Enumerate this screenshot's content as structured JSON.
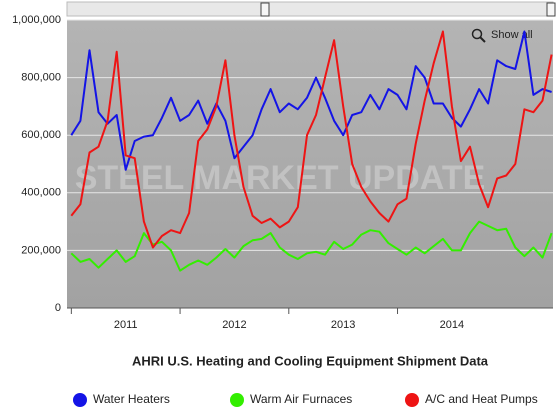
{
  "chart_data": {
    "type": "line",
    "title": "AHRI U.S. Heating and Cooling Equipment Shipment Data",
    "watermark": "STEEL MARKET UPDATE",
    "button_label": "Show all",
    "x": [
      2011,
      2011.083,
      2011.167,
      2011.25,
      2011.333,
      2011.417,
      2011.5,
      2011.583,
      2011.667,
      2011.75,
      2011.833,
      2011.917,
      2012,
      2012.083,
      2012.167,
      2012.25,
      2012.333,
      2012.417,
      2012.5,
      2012.583,
      2012.667,
      2012.75,
      2012.833,
      2012.917,
      2013,
      2013.083,
      2013.167,
      2013.25,
      2013.333,
      2013.417,
      2013.5,
      2013.583,
      2013.667,
      2013.75,
      2013.833,
      2013.917,
      2014,
      2014.083,
      2014.167,
      2014.25,
      2014.333,
      2014.417,
      2014.5,
      2014.583,
      2014.667,
      2014.75,
      2014.833,
      2014.917,
      2015,
      2015.083,
      2015.167,
      2015.25,
      2015.333,
      2015.417
    ],
    "xlim": [
      2010.96,
      2015.43
    ],
    "xticks": [
      2011,
      2012,
      2013,
      2014
    ],
    "ylim": [
      0,
      1000000
    ],
    "yticks": [
      0,
      {
        "value": 200000,
        "label": "200,000"
      },
      {
        "value": 400000,
        "label": "400,000"
      },
      {
        "value": 600000,
        "label": "600,000"
      },
      {
        "value": 800000,
        "label": "800,000"
      },
      {
        "value": 1000000,
        "label": "1,000,000"
      }
    ],
    "grid": true,
    "legend": "bottom",
    "series": [
      {
        "name": "Water Heaters",
        "color": "#1414e6",
        "values": [
          600000,
          650000,
          895000,
          680000,
          640000,
          670000,
          480000,
          580000,
          595000,
          600000,
          660000,
          730000,
          650000,
          670000,
          720000,
          640000,
          710000,
          650000,
          520000,
          560000,
          600000,
          690000,
          760000,
          680000,
          710000,
          690000,
          730000,
          800000,
          730000,
          650000,
          600000,
          670000,
          680000,
          740000,
          690000,
          760000,
          740000,
          690000,
          840000,
          800000,
          710000,
          710000,
          660000,
          630000,
          690000,
          760000,
          710000,
          860000,
          840000,
          830000,
          960000,
          740000,
          760000,
          750000
        ]
      },
      {
        "name": "Warm Air Furnaces",
        "color": "#33ee00",
        "values": [
          190000,
          160000,
          170000,
          140000,
          170000,
          200000,
          160000,
          180000,
          260000,
          220000,
          230000,
          200000,
          130000,
          150000,
          165000,
          150000,
          175000,
          205000,
          175000,
          215000,
          235000,
          240000,
          260000,
          210000,
          185000,
          170000,
          190000,
          195000,
          185000,
          230000,
          205000,
          220000,
          255000,
          270000,
          265000,
          225000,
          205000,
          185000,
          210000,
          190000,
          215000,
          240000,
          200000,
          200000,
          260000,
          300000,
          285000,
          270000,
          275000,
          210000,
          180000,
          210000,
          175000,
          260000
        ]
      },
      {
        "name": "A/C and Heat Pumps",
        "color": "#ee1414",
        "values": [
          320000,
          360000,
          540000,
          560000,
          650000,
          890000,
          530000,
          520000,
          300000,
          210000,
          250000,
          270000,
          260000,
          330000,
          580000,
          620000,
          700000,
          860000,
          600000,
          420000,
          320000,
          295000,
          310000,
          280000,
          300000,
          350000,
          600000,
          670000,
          800000,
          930000,
          700000,
          500000,
          420000,
          370000,
          330000,
          300000,
          360000,
          380000,
          570000,
          720000,
          850000,
          960000,
          700000,
          510000,
          560000,
          430000,
          350000,
          450000,
          460000,
          500000,
          690000,
          680000,
          720000,
          880000
        ]
      }
    ]
  }
}
